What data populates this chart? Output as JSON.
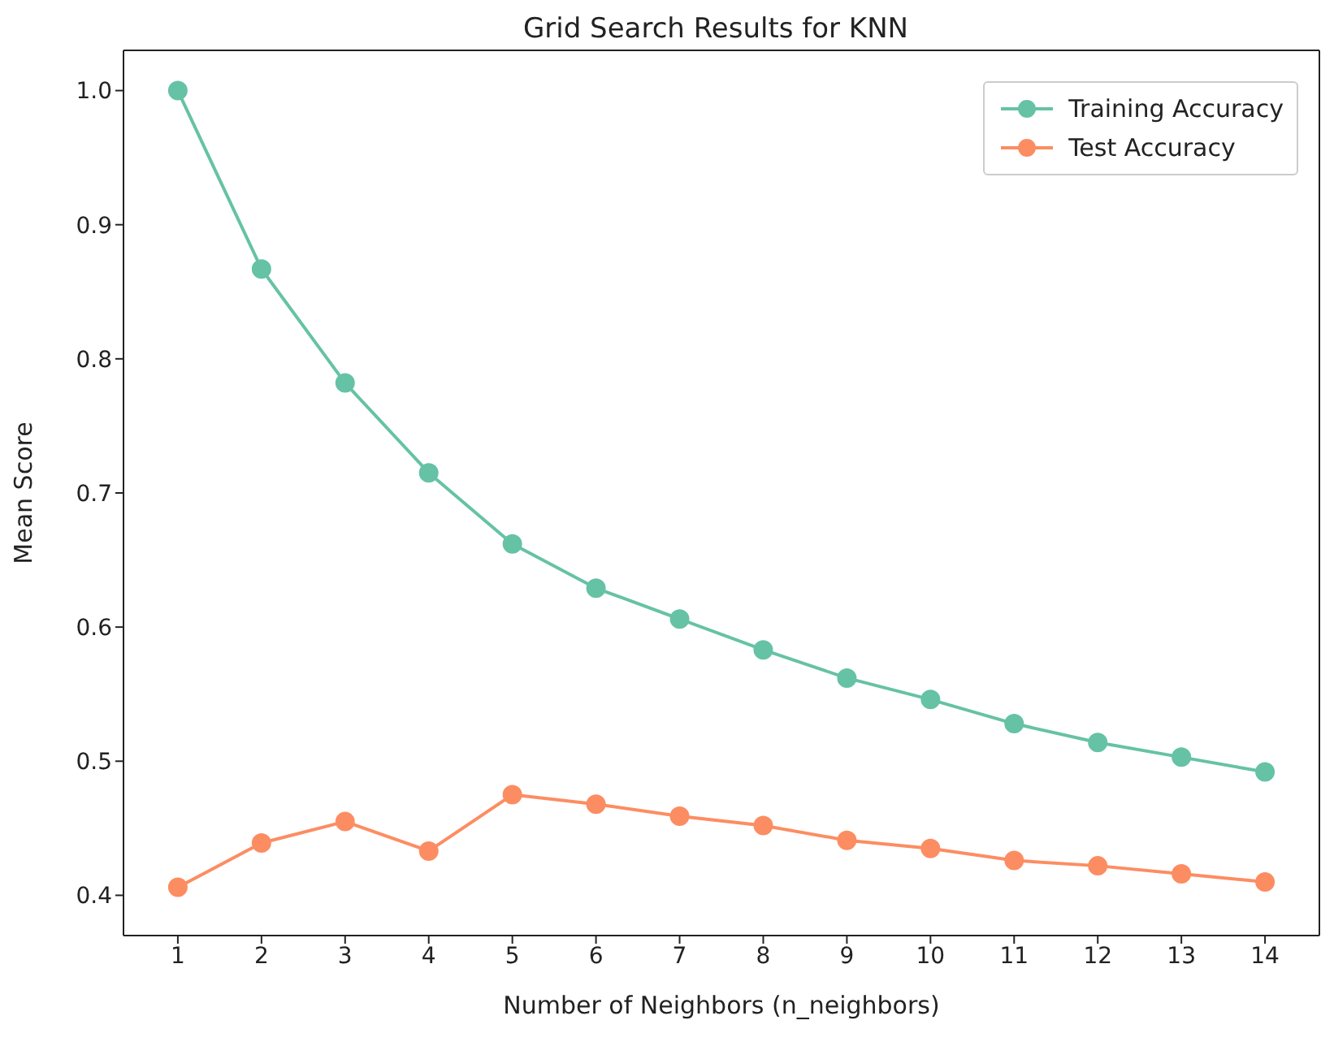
{
  "chart_data": {
    "type": "line",
    "title": "Grid Search Results for KNN",
    "xlabel": "Number of Neighbors (n_neighbors)",
    "ylabel": "Mean Score",
    "x": [
      1,
      2,
      3,
      4,
      5,
      6,
      7,
      8,
      9,
      10,
      11,
      12,
      13,
      14
    ],
    "series": [
      {
        "name": "Training Accuracy",
        "color": "#66c2a5",
        "values": [
          1.0,
          0.867,
          0.782,
          0.715,
          0.662,
          0.629,
          0.606,
          0.583,
          0.562,
          0.546,
          0.528,
          0.514,
          0.503,
          0.492
        ]
      },
      {
        "name": "Test Accuracy",
        "color": "#fc8d62",
        "values": [
          0.406,
          0.439,
          0.455,
          0.433,
          0.475,
          0.468,
          0.459,
          0.452,
          0.441,
          0.435,
          0.426,
          0.422,
          0.416,
          0.41
        ]
      }
    ],
    "xlim": [
      0.35,
      14.65
    ],
    "xticks": [
      1,
      2,
      3,
      4,
      5,
      6,
      7,
      8,
      9,
      10,
      11,
      12,
      13,
      14
    ],
    "ylim": [
      0.37,
      1.03
    ],
    "yticks": [
      0.4,
      0.5,
      0.6,
      0.7,
      0.8,
      0.9,
      {
        "value": 1,
        "label": "1.0"
      }
    ],
    "grid": false,
    "legend": "top right",
    "marker": "circle",
    "line_style": "solid"
  }
}
